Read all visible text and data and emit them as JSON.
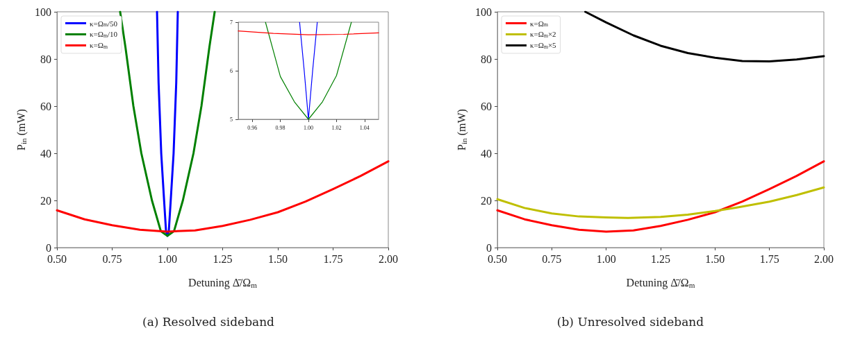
{
  "chart_data": [
    {
      "type": "line",
      "xlabel": "Detuning Δ̄/Ω$_{m}$",
      "ylabel": "P$_{in}$ (mW)",
      "annotations": [
        "(a) Resolved sideband"
      ],
      "xlim": [
        0.5,
        2.0
      ],
      "ylim": [
        0,
        100
      ],
      "xticks": [
        {
          "value": 0.5,
          "label": "0.50"
        },
        0.75,
        {
          "value": 1,
          "label": "1.00"
        },
        1.25,
        {
          "value": 1.5,
          "label": "1.50"
        },
        1.75,
        {
          "value": 2,
          "label": "2.00"
        }
      ],
      "yticks": [
        0,
        20,
        40,
        60,
        80,
        100
      ],
      "grid": false,
      "legend": "top left",
      "marker": "none",
      "line_style": "solid",
      "series": [
        {
          "name": "κ=Ω$_{m}$/50",
          "color": "#0000ff",
          "x": [
            0.953,
            0.96,
            0.972,
            0.985,
            0.9937,
            1.0,
            1.0063,
            1.015,
            1.028,
            1.04,
            1.047
          ],
          "values": [
            100,
            70,
            40,
            20,
            7,
            5,
            7,
            20,
            40,
            70,
            100
          ]
        },
        {
          "name": "κ=Ω$_{m}$/10",
          "color": "#008000",
          "x": [
            0.786,
            0.81,
            0.846,
            0.882,
            0.93,
            0.97,
            1.0,
            1.03,
            1.07,
            1.118,
            1.154,
            1.19,
            1.214
          ],
          "values": [
            100,
            85,
            60,
            40,
            20,
            7,
            5,
            7,
            20,
            40,
            60,
            85,
            100
          ]
        },
        {
          "name": "κ=Ω$_{m}$",
          "color": "#ff0000",
          "x": [
            0.5,
            0.625,
            0.75,
            0.875,
            1.0,
            1.125,
            1.25,
            1.375,
            1.5,
            1.625,
            1.75,
            1.875,
            2.0
          ],
          "values": [
            15.8,
            12,
            9.5,
            7.6,
            6.8,
            7.3,
            9.2,
            11.8,
            15,
            19.5,
            24.8,
            30.4,
            36.6
          ]
        }
      ]
    },
    {
      "type": "line",
      "xlim": [
        0.95,
        1.05
      ],
      "ylim": [
        5,
        7
      ],
      "xticks": [
        0.96,
        0.98,
        {
          "value": 1,
          "label": "1.00"
        },
        1.02,
        1.04
      ],
      "yticks": [
        5,
        6,
        7
      ],
      "grid": false,
      "legend": false,
      "marker": "none",
      "line_style": "solid",
      "series": [
        {
          "color": "#0000ff",
          "x": [
            0.9937,
            0.997,
            1.0,
            1.003,
            1.0063
          ],
          "values": [
            7,
            6.0,
            5.0,
            6.0,
            7
          ]
        },
        {
          "color": "#008000",
          "x": [
            0.9694,
            0.98,
            0.99,
            1.0,
            1.01,
            1.02,
            1.0306
          ],
          "values": [
            7,
            5.88,
            5.36,
            5.0,
            5.36,
            5.9,
            7
          ]
        },
        {
          "color": "#ff0000",
          "x": [
            0.95,
            0.975,
            1.0,
            1.025,
            1.05
          ],
          "values": [
            6.82,
            6.77,
            6.74,
            6.75,
            6.78
          ]
        }
      ]
    },
    {
      "type": "line",
      "xlabel": "Detuning Δ̄/Ω$_{m}$",
      "ylabel": "P$_{in}$ (mW)",
      "annotations": [
        "(b) Unresolved sideband"
      ],
      "xlim": [
        0.5,
        2.0
      ],
      "ylim": [
        0,
        100
      ],
      "xticks": [
        {
          "value": 0.5,
          "label": "0.50"
        },
        0.75,
        {
          "value": 1,
          "label": "1.00"
        },
        1.25,
        {
          "value": 1.5,
          "label": "1.50"
        },
        1.75,
        {
          "value": 2,
          "label": "2.00"
        }
      ],
      "yticks": [
        0,
        20,
        40,
        60,
        80,
        100
      ],
      "grid": false,
      "legend": "top left",
      "marker": "none",
      "line_style": "solid",
      "series": [
        {
          "name": "κ=Ω$_{m}$",
          "color": "#ff0000",
          "x": [
            0.5,
            0.625,
            0.75,
            0.875,
            1.0,
            1.125,
            1.25,
            1.375,
            1.5,
            1.625,
            1.75,
            1.875,
            2.0
          ],
          "values": [
            15.8,
            12,
            9.5,
            7.6,
            6.8,
            7.3,
            9.2,
            11.8,
            15,
            19.5,
            24.8,
            30.4,
            36.6
          ]
        },
        {
          "name": "κ=Ω$_{m}$×2",
          "color": "#bfbf00",
          "x": [
            0.5,
            0.625,
            0.75,
            0.875,
            1.0,
            1.1,
            1.25,
            1.375,
            1.5,
            1.6,
            1.75,
            1.875,
            2.0
          ],
          "values": [
            20.5,
            16.8,
            14.5,
            13.2,
            12.8,
            12.6,
            13,
            14,
            15.5,
            17,
            19.5,
            22.3,
            25.5
          ]
        },
        {
          "name": "κ=Ω$_{m}$×5",
          "color": "#000000",
          "x": [
            0.904,
            1.0,
            1.125,
            1.25,
            1.375,
            1.5,
            1.625,
            1.75,
            1.875,
            2.0
          ],
          "values": [
            100,
            95.5,
            90,
            85.6,
            82.5,
            80.5,
            79.1,
            79,
            79.8,
            81.2
          ]
        }
      ]
    }
  ]
}
